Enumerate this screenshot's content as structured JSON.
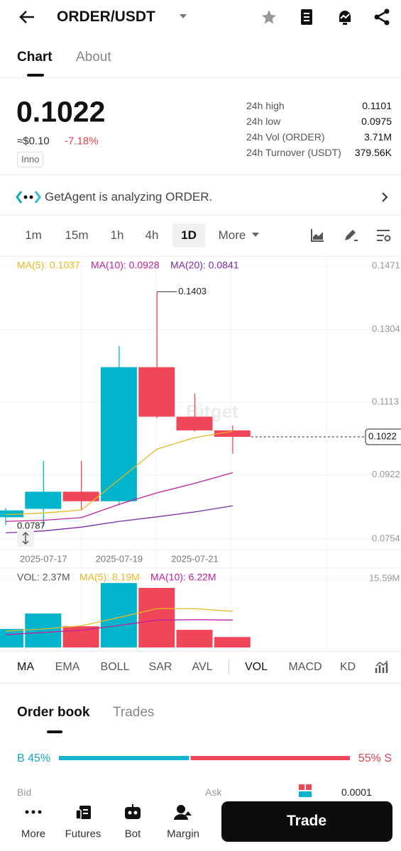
{
  "header": {
    "title": "ORDER/USDT"
  },
  "tabs": [
    "Chart",
    "About"
  ],
  "price": {
    "last": "0.1022",
    "fiat": "≈$0.10",
    "change": "-7.18%",
    "tag": "Inno"
  },
  "stats": [
    {
      "label": "24h high",
      "value": "0.1101"
    },
    {
      "label": "24h low",
      "value": "0.0975"
    },
    {
      "label": "24h Vol (ORDER)",
      "value": "3.71M"
    },
    {
      "label": "24h Turnover (USDT)",
      "value": "379.56K"
    }
  ],
  "agent": "GetAgent is analyzing ORDER.",
  "intervals": [
    "1m",
    "15m",
    "1h",
    "4h",
    "1D",
    "More"
  ],
  "chart_data": [
    {
      "type": "candlestick",
      "watermark": "Bitget",
      "categories": [
        null,
        "2025-07-17",
        null,
        "2025-07-19",
        null,
        "2025-07-21",
        null
      ],
      "open": [
        0.0811,
        0.0833,
        0.0878,
        0.0853,
        0.1205,
        0.1075,
        0.1039
      ],
      "high": [
        0.0835,
        0.0959,
        0.0959,
        0.1261,
        0.1403,
        0.1136,
        0.1052
      ],
      "low": [
        0.079,
        0.0787,
        0.0829,
        0.0842,
        0.1071,
        0.1036,
        0.0978
      ],
      "close": [
        0.0829,
        0.0878,
        0.0853,
        0.1205,
        0.1075,
        0.1039,
        0.1022
      ],
      "up_color": "#00b4cc",
      "down_color": "#f0465a",
      "series": [
        {
          "name": "MA(5): 0.1037",
          "color": "#e8b923",
          "values": [
            0.0818,
            0.0822,
            0.083,
            0.091,
            0.099,
            0.102,
            0.1037
          ]
        },
        {
          "name": "MA(10): 0.0928",
          "color": "#c020a0",
          "values": [
            0.08,
            0.0803,
            0.081,
            0.0845,
            0.0875,
            0.09,
            0.0928
          ]
        },
        {
          "name": "MA(20): 0.0841",
          "color": "#7b2aa8",
          "values": [
            0.077,
            0.0775,
            0.0785,
            0.08,
            0.0812,
            0.0825,
            0.0841
          ]
        }
      ],
      "annotations": [
        {
          "text": "0.1403",
          "value": 0.1403,
          "index": 4
        },
        {
          "text": "0.0787",
          "value": 0.0787,
          "index": 1
        }
      ],
      "last_price": 0.1022,
      "ylim": [
        0.0726,
        0.1495
      ],
      "yticks": [
        0.1471,
        0.1304,
        0.1113,
        0.0922,
        0.0754
      ]
    },
    {
      "type": "bar",
      "series": [
        {
          "name": "VOL: 2.37M",
          "values": [
            4.2,
            7.7,
            4.8,
            14.6,
            13.5,
            4.0,
            2.37
          ],
          "colors": [
            "#00b4cc",
            "#00b4cc",
            "#f0465a",
            "#00b4cc",
            "#f0465a",
            "#f0465a",
            "#f0465a"
          ]
        },
        {
          "name": "MA(5): 8.19M",
          "color": "#e8b923",
          "values": [
            3.7,
            4.2,
            4.9,
            6.8,
            8.8,
            8.8,
            8.19
          ]
        },
        {
          "name": "MA(10): 6.22M",
          "color": "#c020a0",
          "values": [
            2.9,
            3.4,
            3.9,
            5.0,
            6.2,
            6.3,
            6.22
          ]
        }
      ],
      "ylim": [
        0,
        17.84
      ],
      "yticks": [
        {
          "value": 15.59,
          "label": "15.59M"
        }
      ]
    }
  ],
  "indicators": [
    "MA",
    "EMA",
    "BOLL",
    "SAR",
    "AVL",
    "VOL",
    "MACD",
    "KD"
  ],
  "orderbook": {
    "tabs": [
      "Order book",
      "Trades"
    ],
    "buy": {
      "value": 45,
      "label": "B 45%"
    },
    "sell": {
      "value": 55,
      "label": "55% S"
    },
    "columns": [
      "Bid",
      "Ask"
    ],
    "step": "0.0001"
  },
  "nav": [
    "More",
    "Futures",
    "Bot",
    "Margin"
  ],
  "trade": "Trade"
}
